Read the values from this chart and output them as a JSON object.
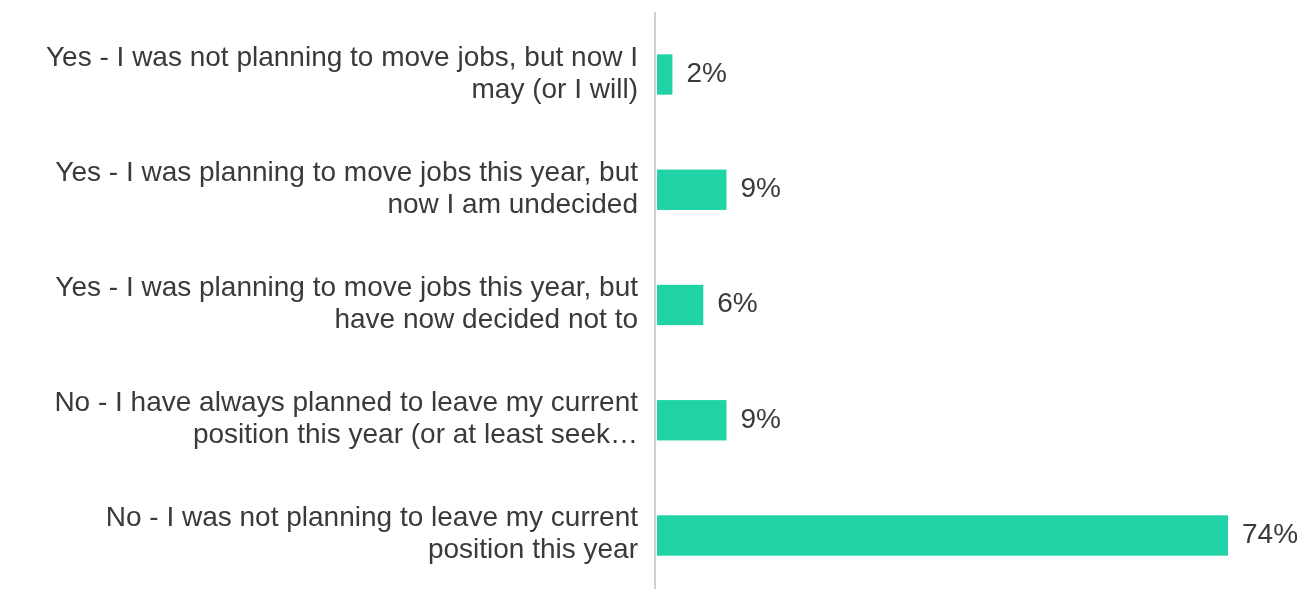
{
  "chart_data": {
    "type": "bar",
    "orientation": "horizontal",
    "categories": [
      "Yes - I was not planning to move jobs, but now I may (or I will)",
      "Yes - I was planning to move jobs this year, but now I am undecided",
      "Yes - I was planning to move jobs this year, but have now decided not to",
      "No - I have always planned to leave my current position this year (or at least seek…",
      "No - I was not planning to leave my current position this year"
    ],
    "series": [
      {
        "color": "#1fd3a6",
        "values": [
          2,
          9,
          6,
          9,
          74
        ],
        "value_labels": [
          "2%",
          "9%",
          "6%",
          "9%",
          "74%"
        ]
      }
    ]
  }
}
